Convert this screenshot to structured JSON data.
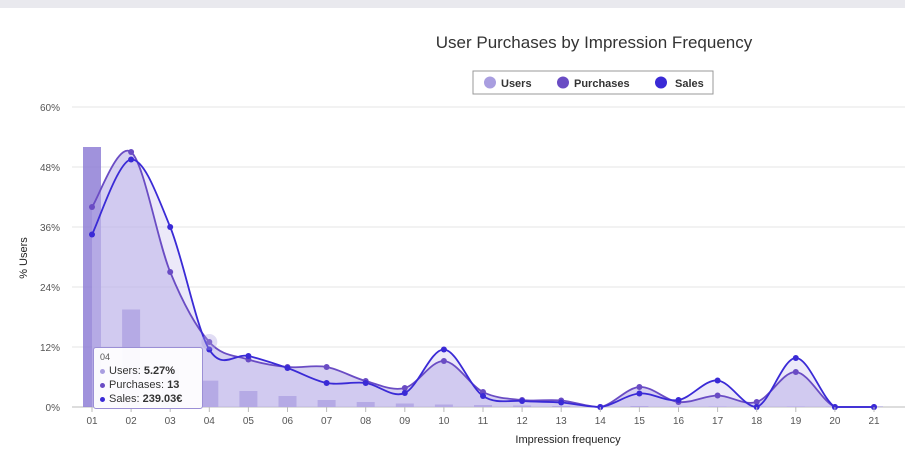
{
  "chart_data": {
    "type": "line",
    "title": "User Purchases by Impression Frequency",
    "xlabel": "Impression frequency",
    "ylabel": "% Users",
    "ylim": [
      0,
      60
    ],
    "y_ticks": [
      "0%",
      "12%",
      "24%",
      "36%",
      "48%",
      "60%"
    ],
    "categories": [
      "01",
      "02",
      "03",
      "04",
      "05",
      "06",
      "07",
      "08",
      "09",
      "10",
      "11",
      "12",
      "13",
      "14",
      "15",
      "16",
      "17",
      "18",
      "19",
      "20",
      "21"
    ],
    "grid": true,
    "legend_position": "top-center",
    "series": [
      {
        "name": "Users",
        "kind": "bar-area",
        "color": "#a99ee0",
        "values": [
          52,
          19.5,
          7.8,
          5.27,
          3.2,
          2.2,
          1.4,
          1,
          0.7,
          0.5,
          0.4,
          0.3,
          0.2,
          0.2,
          0.2,
          0.1,
          0.1,
          0.1,
          0.1,
          0.1,
          0.1
        ]
      },
      {
        "name": "Purchases",
        "kind": "line",
        "color": "#6a4cc4",
        "values": [
          40,
          51,
          27,
          13,
          9.5,
          8,
          8,
          5.2,
          3.8,
          9.2,
          3,
          1.4,
          1.3,
          0,
          4,
          1,
          2.3,
          1,
          7,
          0,
          0
        ]
      },
      {
        "name": "Sales",
        "kind": "line",
        "color": "#3a2ad6",
        "values": [
          34.5,
          49.5,
          36,
          11.5,
          10.2,
          7.8,
          4.8,
          4.8,
          2.8,
          11.5,
          2.2,
          1.2,
          0.9,
          0,
          2.7,
          1.4,
          5.3,
          0,
          9.8,
          0,
          0
        ]
      }
    ],
    "tooltip": {
      "category": "04",
      "rows": [
        {
          "label": "Users: ",
          "value": "5.27%",
          "color": "#a99ee0"
        },
        {
          "label": "Purchases: ",
          "value": "13",
          "color": "#6a4cc4"
        },
        {
          "label": "Sales: ",
          "value": "239.03€",
          "color": "#3a2ad6"
        }
      ]
    }
  }
}
